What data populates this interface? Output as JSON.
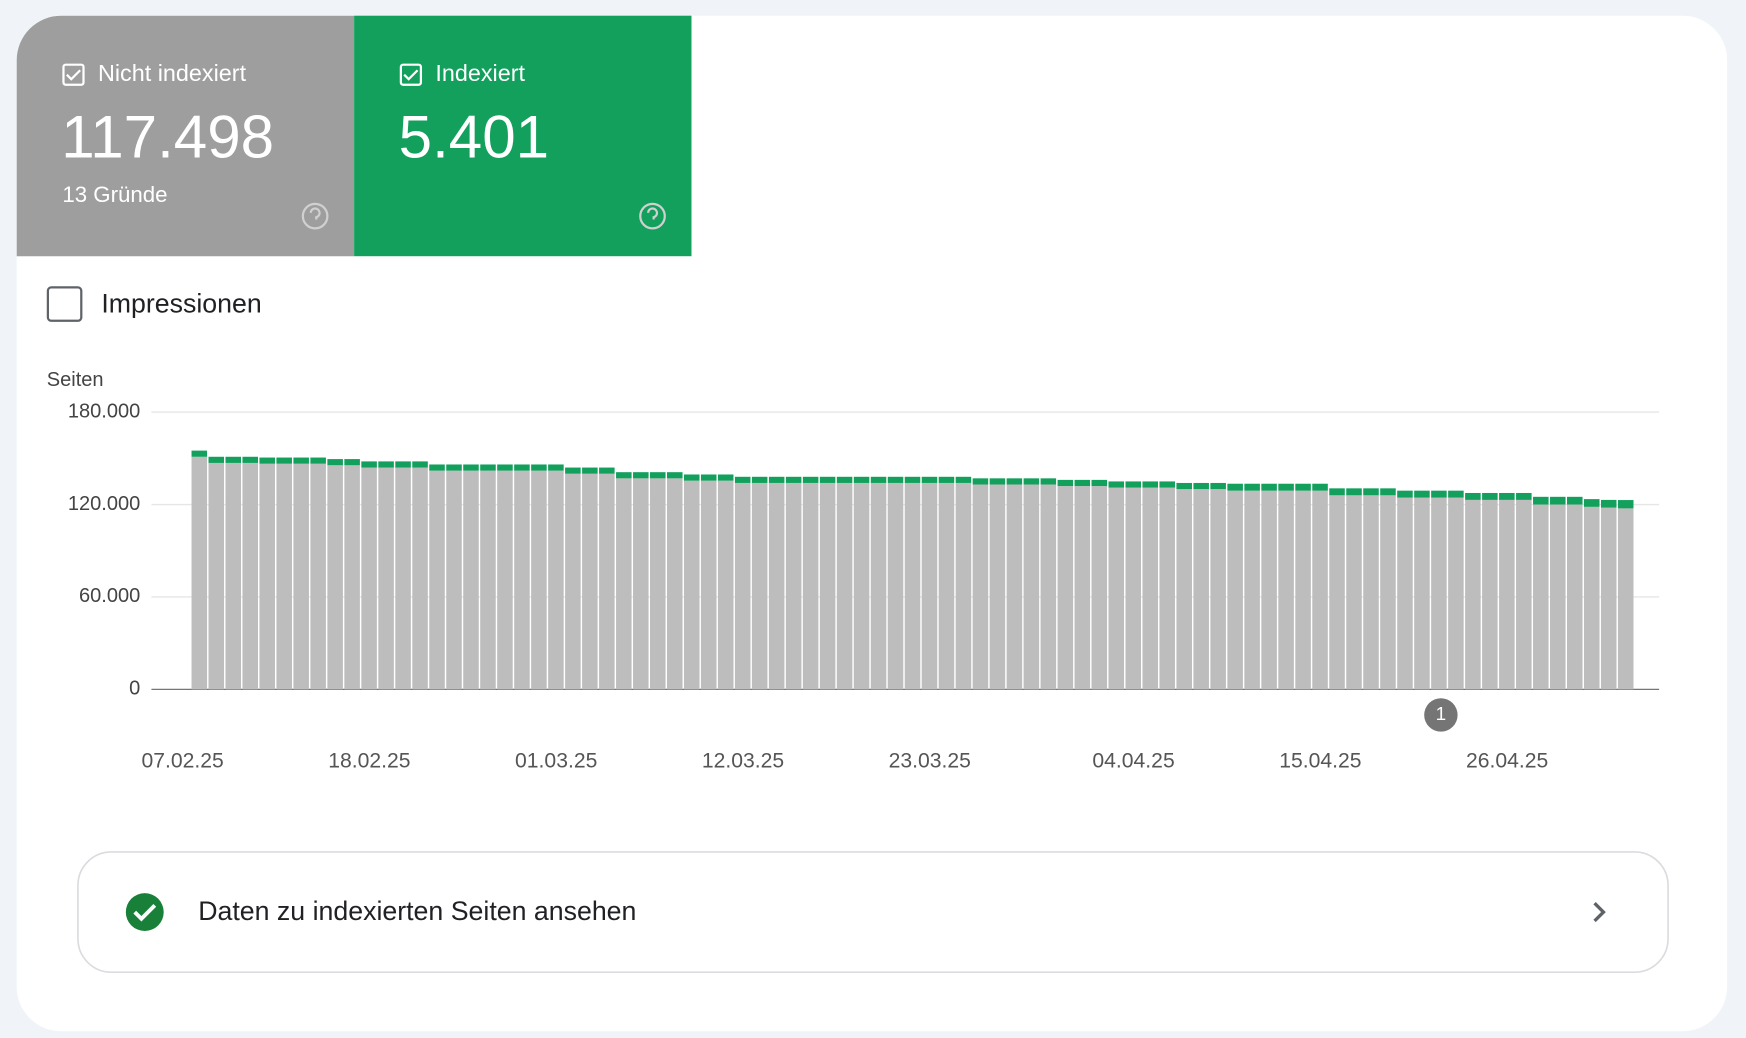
{
  "tiles": [
    {
      "value": "117.498",
      "subtitle": "13 Gründe"
    },
    {
      "value": "5.401"
    }
  ],
  "impressions_label": "Impressionen",
  "chart_data": {
    "type": "bar",
    "stacked": true,
    "y_label": "Seiten",
    "categories": [
      "07.02.25",
      null,
      null,
      null,
      null,
      null,
      null,
      null,
      null,
      null,
      null,
      "18.02.25",
      null,
      null,
      null,
      null,
      null,
      null,
      null,
      null,
      null,
      null,
      "01.03.25",
      null,
      null,
      null,
      null,
      null,
      null,
      null,
      null,
      null,
      null,
      "12.03.25",
      null,
      null,
      null,
      null,
      null,
      null,
      null,
      null,
      null,
      null,
      "23.03.25",
      null,
      null,
      null,
      null,
      null,
      null,
      null,
      null,
      null,
      null,
      null,
      "04.04.25",
      null,
      null,
      null,
      null,
      null,
      null,
      null,
      null,
      null,
      null,
      "15.04.25",
      null,
      null,
      null,
      null,
      null,
      null,
      null,
      null,
      null,
      null,
      "26.04.25",
      null,
      null,
      null,
      null,
      null,
      null
    ],
    "series": [
      {
        "name": "Nicht indexiert",
        "color": "#bdbdbd",
        "values": [
          151000,
          147000,
          147000,
          147000,
          146500,
          146500,
          146500,
          146500,
          145500,
          145500,
          144000,
          144000,
          144000,
          144000,
          142000,
          142000,
          142000,
          142000,
          142000,
          142000,
          142000,
          142000,
          140000,
          140000,
          140000,
          137000,
          137000,
          137000,
          137000,
          135500,
          135500,
          135500,
          134000,
          134000,
          134000,
          134000,
          134000,
          134000,
          134000,
          134000,
          134000,
          134000,
          134000,
          134000,
          134000,
          134000,
          133000,
          133000,
          133000,
          133000,
          133000,
          132000,
          132000,
          132000,
          131000,
          131000,
          131000,
          131000,
          130000,
          130000,
          130000,
          129000,
          129000,
          129000,
          129000,
          129000,
          129000,
          126000,
          126000,
          126000,
          126000,
          124500,
          124500,
          124500,
          124500,
          123000,
          123000,
          123000,
          123000,
          120000,
          120000,
          120000,
          118500,
          118000,
          117498
        ]
      },
      {
        "name": "Indexiert",
        "color": "#12a05c",
        "values": [
          4000,
          4000,
          4000,
          4000,
          4000,
          4000,
          4000,
          4000,
          4000,
          4000,
          4000,
          4000,
          4000,
          4000,
          4000,
          4000,
          4000,
          4000,
          4000,
          4000,
          4000,
          4000,
          4000,
          4000,
          4000,
          4000,
          4000,
          4000,
          4000,
          4000,
          4000,
          4000,
          4000,
          4000,
          4000,
          4000,
          4000,
          4000,
          4000,
          4000,
          4000,
          4000,
          4000,
          4000,
          4000,
          4000,
          4000,
          4000,
          4000,
          4000,
          4000,
          4000,
          4000,
          4000,
          4000,
          4000,
          4000,
          4000,
          4000,
          4000,
          4000,
          4500,
          4500,
          4500,
          4500,
          4500,
          4500,
          4500,
          4500,
          4500,
          4500,
          4500,
          4500,
          4500,
          4500,
          4500,
          4500,
          4500,
          4500,
          5000,
          5000,
          5000,
          5000,
          5000,
          5401
        ]
      }
    ],
    "ylim": [
      0,
      180000
    ],
    "yticks": [
      0,
      {
        "value": 60000,
        "label": "60.000"
      },
      {
        "value": 120000,
        "label": "120.000"
      },
      {
        "value": 180000,
        "label": "180.000"
      }
    ],
    "grid": true,
    "annotation": "1"
  },
  "link": {
    "label": "Daten zu indexierten Seiten ansehen"
  }
}
